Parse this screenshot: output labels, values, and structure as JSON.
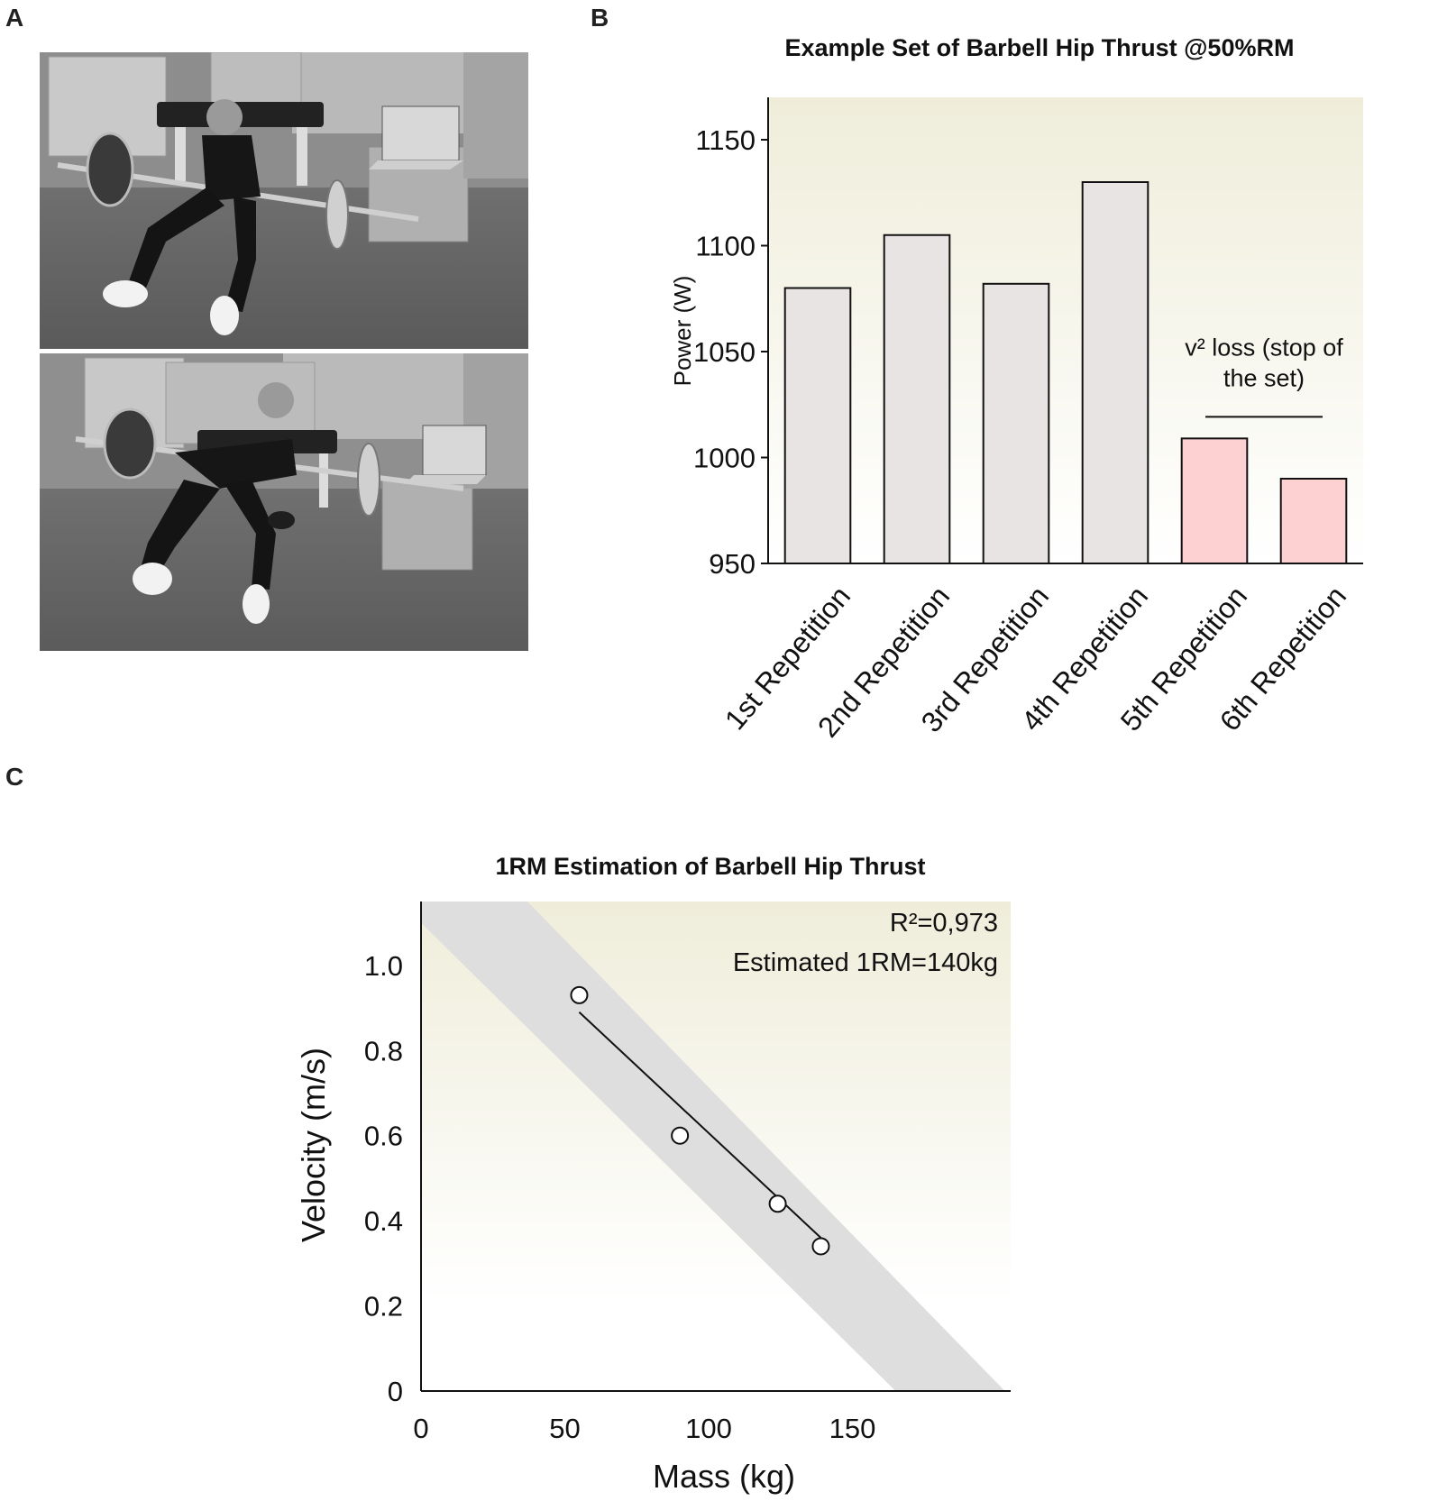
{
  "panels": {
    "a": {
      "letter": "A"
    },
    "b": {
      "letter": "B"
    },
    "c": {
      "letter": "C"
    }
  },
  "chart_data": [
    {
      "type": "bar",
      "title": "Example Set of Barbell Hip Thrust @50%RM",
      "ylabel": "Power (W)",
      "xlabel": "",
      "ylim": [
        950,
        1170
      ],
      "yticks": [
        950,
        1000,
        1050,
        1100,
        1150
      ],
      "categories": [
        "1st Repetition",
        "2nd Repetition",
        "3rd Repetition",
        "4th Repetition",
        "5th Repetition",
        "6th Repetition"
      ],
      "values": [
        1080,
        1105,
        1082,
        1130,
        1009,
        990
      ],
      "bar_colors": [
        "#e9e4e4",
        "#e9e4e4",
        "#e9e4e4",
        "#e9e4e4",
        "#fdd0d2",
        "#fdd0d2"
      ],
      "annotation": {
        "lines": [
          "v² loss (stop of",
          "the set)"
        ],
        "spans": [
          4,
          5
        ]
      },
      "background_gradient": [
        "#efedda",
        "#ffffff"
      ],
      "grid": false
    },
    {
      "type": "scatter",
      "title": "1RM Estimation of Barbell Hip Thrust",
      "xlabel": "Mass (kg)",
      "ylabel": "Velocity (m/s)",
      "xlim": [
        0,
        205
      ],
      "ylim": [
        0,
        1.15
      ],
      "xticks": [
        0,
        50,
        100,
        150
      ],
      "yticks": [
        0,
        0.2,
        0.4,
        0.6,
        0.8,
        1.0
      ],
      "ytick_labels": [
        "0",
        "0.2",
        "0.4",
        "0.6",
        "0.8",
        "1.0"
      ],
      "points": [
        {
          "x": 55,
          "y": 0.93
        },
        {
          "x": 90,
          "y": 0.6
        },
        {
          "x": 124,
          "y": 0.44
        },
        {
          "x": 139,
          "y": 0.34
        }
      ],
      "fit_line": {
        "x": [
          55,
          139
        ],
        "y": [
          0.89,
          0.36
        ]
      },
      "band_polygon": [
        [
          0,
          1.15
        ],
        [
          37,
          1.15
        ],
        [
          203,
          0
        ],
        [
          165,
          0
        ],
        [
          0,
          1.1
        ]
      ],
      "annotations": [
        "R²=0,973",
        "Estimated 1RM=140kg"
      ],
      "background_gradient": [
        "#efedda",
        "#ffffff"
      ],
      "grid": false
    }
  ]
}
